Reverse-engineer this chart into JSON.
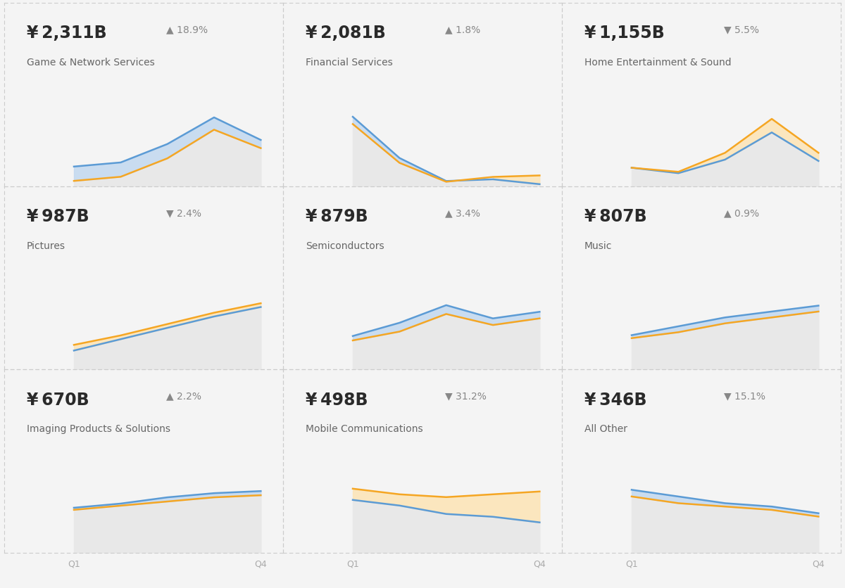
{
  "panels": [
    {
      "title": "Game & Network Services",
      "value": "¥ 2,311B",
      "change": "18.9%",
      "up": true,
      "blue_line": [
        1.0,
        1.1,
        1.55,
        2.2,
        1.65
      ],
      "orange_line": [
        0.65,
        0.75,
        1.2,
        1.9,
        1.45
      ],
      "row": 0,
      "col": 0
    },
    {
      "title": "Financial Services",
      "value": "¥ 2,081B",
      "change": "1.8%",
      "up": true,
      "blue_line": [
        3.2,
        1.5,
        0.55,
        0.62,
        0.42
      ],
      "orange_line": [
        2.9,
        1.3,
        0.52,
        0.72,
        0.78
      ],
      "row": 0,
      "col": 1
    },
    {
      "title": "Home Entertainment & Sound",
      "value": "¥ 1,155B",
      "change": "5.5%",
      "up": false,
      "blue_line": [
        0.52,
        0.48,
        0.58,
        0.78,
        0.57
      ],
      "orange_line": [
        0.52,
        0.49,
        0.63,
        0.88,
        0.63
      ],
      "row": 0,
      "col": 2
    },
    {
      "title": "Pictures",
      "value": "¥ 987B",
      "change": "2.4%",
      "up": false,
      "blue_line": [
        0.5,
        0.56,
        0.62,
        0.68,
        0.73
      ],
      "orange_line": [
        0.53,
        0.58,
        0.64,
        0.7,
        0.75
      ],
      "row": 1,
      "col": 0
    },
    {
      "title": "Semiconductors",
      "value": "¥ 879B",
      "change": "3.4%",
      "up": true,
      "blue_line": [
        0.68,
        0.74,
        0.82,
        0.76,
        0.79
      ],
      "orange_line": [
        0.66,
        0.7,
        0.78,
        0.73,
        0.76
      ],
      "row": 1,
      "col": 1
    },
    {
      "title": "Music",
      "value": "¥ 807B",
      "change": "0.9%",
      "up": true,
      "blue_line": [
        0.54,
        0.57,
        0.6,
        0.62,
        0.64
      ],
      "orange_line": [
        0.53,
        0.55,
        0.58,
        0.6,
        0.62
      ],
      "row": 1,
      "col": 2
    },
    {
      "title": "Imaging Products & Solutions",
      "value": "¥ 670B",
      "change": "2.2%",
      "up": true,
      "blue_line": [
        0.52,
        0.53,
        0.545,
        0.555,
        0.56
      ],
      "orange_line": [
        0.515,
        0.525,
        0.535,
        0.545,
        0.55
      ],
      "row": 2,
      "col": 0
    },
    {
      "title": "Mobile Communications",
      "value": "¥ 498B",
      "change": "31.2%",
      "up": false,
      "blue_line": [
        0.62,
        0.6,
        0.57,
        0.56,
        0.54
      ],
      "orange_line": [
        0.66,
        0.64,
        0.63,
        0.64,
        0.65
      ],
      "row": 2,
      "col": 1
    },
    {
      "title": "All Other",
      "value": "¥ 346B",
      "change": "15.1%",
      "up": false,
      "blue_line": [
        0.62,
        0.6,
        0.58,
        0.57,
        0.55
      ],
      "orange_line": [
        0.6,
        0.58,
        0.57,
        0.56,
        0.54
      ],
      "row": 2,
      "col": 2
    }
  ],
  "bg_color": "#f4f4f4",
  "panel_bg": "#f4f4f4",
  "chart_bg": "#e8e8e8",
  "blue_color": "#5b9bd5",
  "blue_fill": "#c2d8f0",
  "orange_color": "#f5a623",
  "orange_fill": "#fde4b5",
  "value_fontsize": 17,
  "pct_fontsize": 10,
  "title_fontsize": 10,
  "tick_fontsize": 9,
  "x_ticks": [
    "Q1",
    "Q4"
  ]
}
